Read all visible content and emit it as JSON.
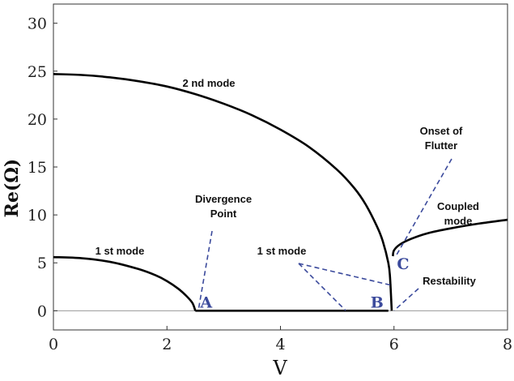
{
  "chart_data": {
    "type": "line",
    "title": "",
    "xlabel": "V",
    "ylabel": "Re(Ω)",
    "xlim": [
      0,
      8
    ],
    "ylim": [
      -2,
      32
    ],
    "xticks": [
      0,
      2,
      4,
      6,
      8
    ],
    "yticks": [
      0,
      5,
      10,
      15,
      20,
      25,
      30
    ],
    "grid": false,
    "legend": "none",
    "series": [
      {
        "x": [
          0,
          0.5,
          1.0,
          1.5,
          1.8,
          2.0,
          2.2,
          2.35,
          2.45,
          2.5
        ],
        "y": [
          5.6,
          5.48,
          5.1,
          4.35,
          3.7,
          3.1,
          2.3,
          1.5,
          0.8,
          0
        ]
      },
      {
        "x": [
          2.5,
          3.0,
          4.0,
          5.0,
          5.9
        ],
        "y": [
          0,
          0,
          0,
          0,
          0
        ]
      },
      {
        "x": [
          0,
          0.5,
          1.0,
          1.5,
          2.0,
          2.5,
          3.0,
          3.5,
          4.0,
          4.5,
          5.0,
          5.3,
          5.5,
          5.7,
          5.8,
          5.9,
          5.93,
          5.96
        ],
        "y": [
          24.7,
          24.6,
          24.35,
          23.95,
          23.4,
          22.6,
          21.6,
          20.4,
          18.9,
          17.1,
          14.7,
          12.8,
          11.1,
          8.8,
          7.3,
          5.0,
          3.5,
          0
        ]
      },
      {
        "x": [
          5.98,
          6.0,
          6.1,
          6.3,
          6.6,
          7.0,
          7.5,
          8.0
        ],
        "y": [
          5.7,
          6.3,
          6.9,
          7.5,
          8.1,
          8.6,
          9.1,
          9.5
        ]
      }
    ],
    "baseline": 0,
    "annotations": [
      {
        "id": "mode1-label",
        "text": "1 st mode"
      },
      {
        "id": "mode2-label",
        "text": "2 nd mode"
      },
      {
        "id": "divergence-label",
        "text": [
          "Divergence",
          "Point"
        ]
      },
      {
        "id": "mode1-flat-label",
        "text": "1 st mode"
      },
      {
        "id": "flutter-label",
        "text": [
          "Onset of",
          "Flutter"
        ]
      },
      {
        "id": "coupled-label",
        "text": [
          "Coupled",
          "mode"
        ]
      },
      {
        "id": "restability-label",
        "text": "Restability"
      }
    ],
    "points": [
      {
        "label": "A",
        "x": 2.5,
        "y": 0,
        "color": "#3b4a9c"
      },
      {
        "label": "B",
        "x": 5.9,
        "y": 0,
        "color": "#3b4a9c"
      },
      {
        "label": "C",
        "x": 5.98,
        "y": 5.7,
        "color": "#3b4a9c"
      }
    ]
  }
}
